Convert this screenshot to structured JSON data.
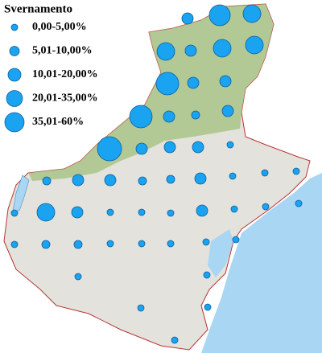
{
  "legend": {
    "title": "Svernamento",
    "items": [
      "0,00-5,00%",
      "5,01-10,00%",
      "10,01-20,00%",
      "20,01-35,00%",
      "35,01-60%"
    ]
  }
}
